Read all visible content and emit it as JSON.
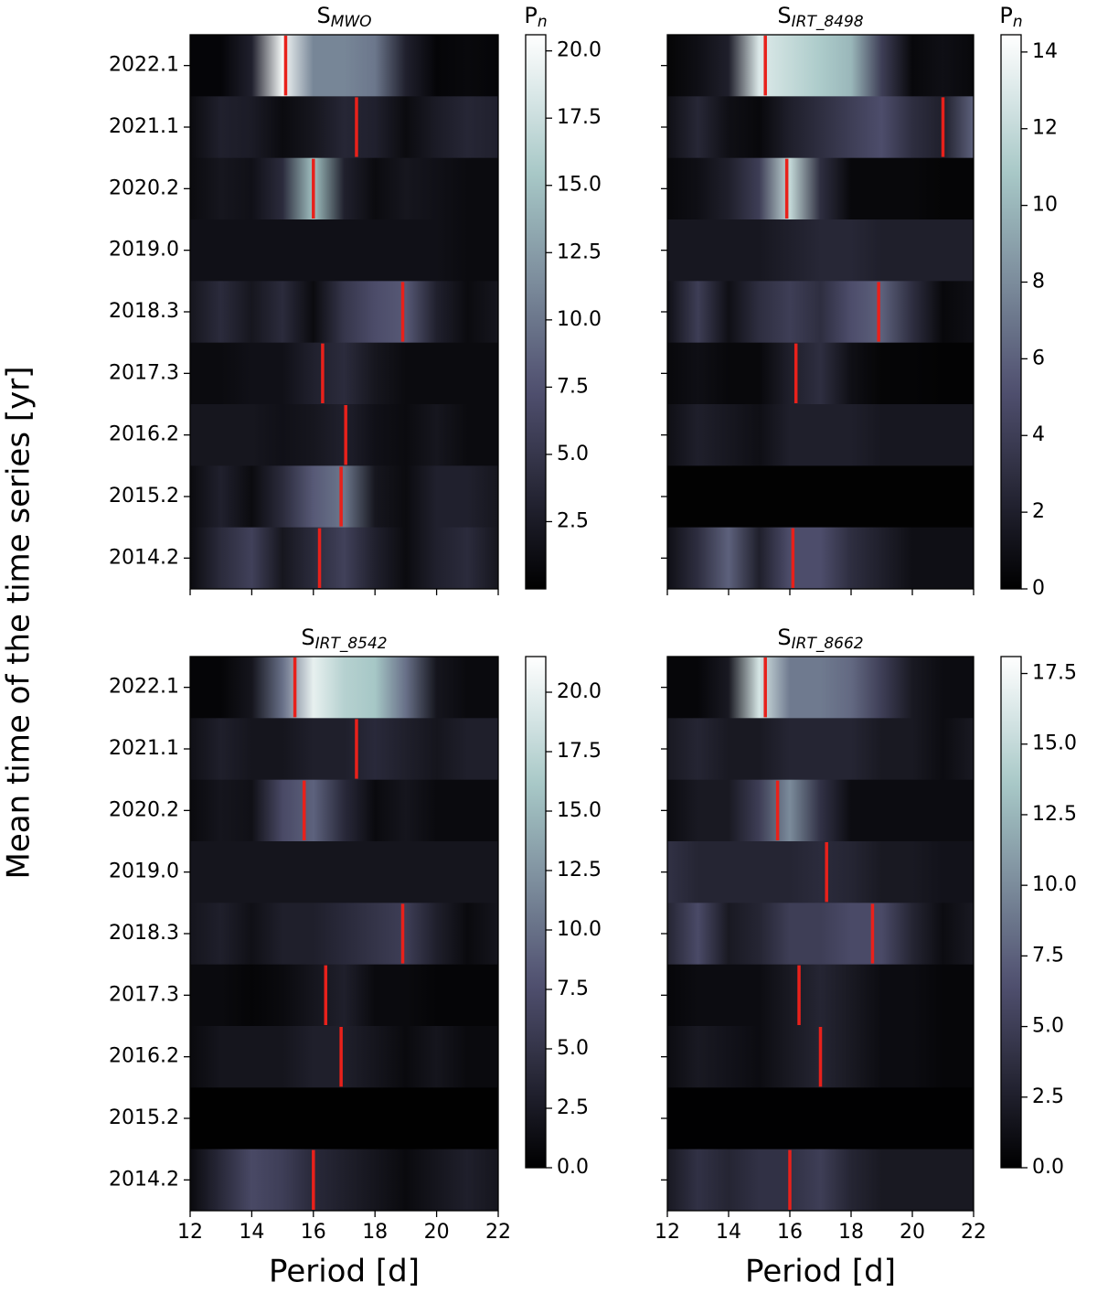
{
  "chart_data": [
    {
      "type": "heatmap",
      "title": "S",
      "title_sub": "MWO",
      "colorbar_label": "P",
      "colorbar_label_sub": "n",
      "ylabel": "Mean time of the time series [yr]",
      "colormap": "bone",
      "peak_color": "#e8211b",
      "xtick_labels": false,
      "categories": [
        "2022.1",
        "2021.1",
        "2020.2",
        "2019.0",
        "2018.3",
        "2017.3",
        "2016.2",
        "2015.2",
        "2014.2"
      ],
      "x": [
        12,
        13,
        14,
        15,
        16,
        17,
        18,
        19,
        20,
        21,
        22
      ],
      "xlim": [
        12,
        22
      ],
      "xticks": [
        12,
        14,
        16,
        18,
        20,
        22
      ],
      "zlim": [
        0,
        20.6
      ],
      "zticks": [
        2.5,
        {
          "value": 5,
          "label": "5.0"
        },
        7.5,
        {
          "value": 10,
          "label": "10.0"
        },
        12.5,
        {
          "value": 15,
          "label": "15.0"
        },
        17.5,
        {
          "value": 20,
          "label": "20.0"
        }
      ],
      "series": [
        {
          "values": [
            0.5,
            0.5,
            3,
            20,
            11,
            11,
            10,
            3,
            0.5,
            0.8,
            0.5
          ],
          "peak": 15.1
        },
        {
          "values": [
            1,
            3,
            2.5,
            1,
            2,
            3.5,
            3,
            1,
            2.5,
            3.5,
            3
          ],
          "peak": 17.4
        },
        {
          "values": [
            1,
            2,
            1.5,
            4,
            15,
            3,
            1,
            2,
            1.5,
            1,
            1
          ],
          "peak": 16.0
        },
        {
          "values": [
            1.5,
            1.5,
            1.5,
            1.5,
            1.5,
            1.5,
            1.5,
            1.5,
            1.5,
            1,
            1
          ],
          "peak": null
        },
        {
          "values": [
            2,
            4,
            2,
            4,
            1,
            5,
            7,
            8,
            3,
            1,
            2
          ],
          "peak": 18.9
        },
        {
          "values": [
            1,
            1,
            1.5,
            1.5,
            3,
            4,
            2,
            1,
            1,
            1,
            1
          ],
          "peak": 16.3
        },
        {
          "values": [
            2,
            2,
            2,
            1.5,
            2,
            3,
            1.5,
            1,
            2,
            1,
            1
          ],
          "peak": 17.05
        },
        {
          "values": [
            1,
            3,
            1,
            4,
            8,
            10,
            2,
            1,
            3,
            3,
            2
          ],
          "peak": 16.9
        },
        {
          "values": [
            1,
            4,
            6,
            2,
            4,
            6,
            3,
            1,
            3,
            4,
            2
          ],
          "peak": 16.2
        }
      ]
    },
    {
      "type": "heatmap",
      "title": "S",
      "title_sub": "IRT_8498",
      "colorbar_label": "P",
      "colorbar_label_sub": "n",
      "colormap": "bone",
      "peak_color": "#e8211b",
      "xtick_labels": false,
      "x": [
        12,
        13,
        14,
        15,
        16,
        17,
        18,
        19,
        20,
        21,
        22
      ],
      "xlim": [
        12,
        22
      ],
      "xticks": [
        12,
        14,
        16,
        18,
        20,
        22
      ],
      "zlim": [
        0,
        14.45
      ],
      "zticks": [
        0,
        2,
        4,
        6,
        8,
        10,
        12,
        14
      ],
      "series": [
        {
          "values": [
            0.3,
            1,
            2,
            13,
            12,
            11,
            10,
            4,
            0.5,
            1,
            0.5
          ],
          "peak": 15.2
        },
        {
          "values": [
            1,
            2.5,
            1,
            0.5,
            2,
            3,
            4,
            5,
            3,
            2,
            6
          ],
          "peak": 21.0
        },
        {
          "values": [
            0.5,
            1,
            2,
            4,
            12,
            3,
            0.5,
            0.5,
            0.5,
            0.3,
            0.3
          ],
          "peak": 15.9
        },
        {
          "values": [
            1.5,
            1.5,
            1.5,
            1.5,
            2,
            2.5,
            2.5,
            2,
            2,
            2,
            2
          ],
          "peak": null
        },
        {
          "values": [
            1,
            4,
            1,
            3,
            4,
            3,
            5,
            6,
            3,
            0.5,
            1
          ],
          "peak": 18.9
        },
        {
          "values": [
            0.5,
            1,
            0.5,
            0.5,
            2,
            3,
            1,
            0.3,
            0.3,
            0.2,
            0.2
          ],
          "peak": 16.2
        },
        {
          "values": [
            1,
            2,
            1.5,
            1,
            2,
            2,
            2,
            1.5,
            1.5,
            1.5,
            1.5
          ],
          "peak": null
        },
        {
          "values": [
            0.1,
            0.1,
            0.1,
            0.1,
            0.1,
            0.1,
            0.1,
            0.1,
            0.1,
            0.1,
            0.1
          ],
          "peak": null
        },
        {
          "values": [
            1,
            3,
            6,
            2,
            5,
            5,
            3,
            2,
            1,
            1,
            1
          ],
          "peak": 16.1
        }
      ]
    },
    {
      "type": "heatmap",
      "title": "S",
      "title_sub": "IRT_8542",
      "xlabel": "Period [d]",
      "colormap": "bone",
      "peak_color": "#e8211b",
      "categories": [
        "2022.1",
        "2021.1",
        "2020.2",
        "2019.0",
        "2018.3",
        "2017.3",
        "2016.2",
        "2015.2",
        "2014.2"
      ],
      "x": [
        12,
        13,
        14,
        15,
        16,
        17,
        18,
        19,
        20,
        21,
        22
      ],
      "xlim": [
        12,
        22
      ],
      "xticks": [
        12,
        14,
        16,
        18,
        20,
        22
      ],
      "zlim": [
        0,
        21.5
      ],
      "zticks": [
        {
          "value": 0,
          "label": "0.0"
        },
        2.5,
        {
          "value": 5,
          "label": "5.0"
        },
        7.5,
        {
          "value": 10,
          "label": "10.0"
        },
        12.5,
        {
          "value": 15,
          "label": "15.0"
        },
        17.5,
        {
          "value": 20,
          "label": "20.0"
        }
      ],
      "series": [
        {
          "values": [
            0.5,
            0.5,
            2,
            10,
            20,
            17,
            16,
            10,
            2,
            1,
            1
          ],
          "peak": 15.4
        },
        {
          "values": [
            1.5,
            3,
            2,
            2,
            3,
            3,
            4,
            3,
            2,
            3,
            3
          ],
          "peak": 17.4
        },
        {
          "values": [
            1,
            2,
            1.5,
            7,
            9,
            4,
            1,
            2,
            1,
            1,
            1
          ],
          "peak": 15.7
        },
        {
          "values": [
            2,
            2,
            2,
            2,
            2,
            2,
            2,
            2,
            2,
            2,
            2
          ],
          "peak": null
        },
        {
          "values": [
            2,
            3,
            1.5,
            3,
            3,
            4,
            5,
            6,
            3,
            1,
            2
          ],
          "peak": 18.9
        },
        {
          "values": [
            1,
            1,
            0.5,
            1,
            2,
            3,
            1,
            1,
            0.5,
            0.5,
            0.5
          ],
          "peak": 16.4
        },
        {
          "values": [
            1,
            2,
            2,
            2,
            3,
            3,
            2,
            1,
            2,
            1,
            1
          ],
          "peak": 16.9
        },
        {
          "values": [
            0.1,
            0.1,
            0.1,
            0.1,
            0.1,
            0.1,
            0.1,
            0.1,
            0.1,
            0.1,
            0.1
          ],
          "peak": null
        },
        {
          "values": [
            1,
            4,
            7,
            6,
            4,
            3,
            2,
            1,
            2,
            3,
            2
          ],
          "peak": 16.0
        }
      ]
    },
    {
      "type": "heatmap",
      "title": "S",
      "title_sub": "IRT_8662",
      "xlabel": "Period [d]",
      "colormap": "bone",
      "peak_color": "#e8211b",
      "x": [
        12,
        13,
        14,
        15,
        16,
        17,
        18,
        19,
        20,
        21,
        22
      ],
      "xlim": [
        12,
        22
      ],
      "xticks": [
        12,
        14,
        16,
        18,
        20,
        22
      ],
      "zlim": [
        0,
        18.1
      ],
      "zticks": [
        {
          "value": 0,
          "label": "0.0"
        },
        2.5,
        {
          "value": 5,
          "label": "5.0"
        },
        7.5,
        {
          "value": 10,
          "label": "10.0"
        },
        12.5,
        {
          "value": 15,
          "label": "15.0"
        },
        17.5
      ],
      "series": [
        {
          "values": [
            0.5,
            0.5,
            2,
            16,
            9,
            9,
            8,
            5,
            2,
            1,
            1
          ],
          "peak": 15.2
        },
        {
          "values": [
            2,
            3,
            2,
            2,
            3,
            3,
            3,
            2,
            2,
            1,
            2
          ],
          "peak": null
        },
        {
          "values": [
            1,
            2,
            2,
            5,
            10,
            4,
            1,
            1,
            1,
            1,
            1
          ],
          "peak": 15.6
        },
        {
          "values": [
            4,
            3,
            3,
            3,
            3,
            3.5,
            3,
            2,
            2,
            1.5,
            1.5
          ],
          "peak": 17.2
        },
        {
          "values": [
            3,
            6,
            2,
            3,
            5,
            5,
            6,
            6,
            3,
            1,
            2
          ],
          "peak": 18.7
        },
        {
          "values": [
            0.5,
            1,
            1,
            1,
            2,
            3,
            2,
            1,
            1,
            0.5,
            0.5
          ],
          "peak": 16.3
        },
        {
          "values": [
            1,
            2,
            1.5,
            1,
            2,
            3,
            2,
            1,
            1,
            0.5,
            0.5
          ],
          "peak": 17.0
        },
        {
          "values": [
            0.1,
            0.1,
            0.1,
            0.1,
            0.1,
            0.1,
            0.1,
            0.1,
            0.1,
            0.1,
            0.1
          ],
          "peak": null
        },
        {
          "values": [
            2,
            4,
            3,
            4,
            4,
            5,
            3,
            2,
            2,
            2,
            2
          ],
          "peak": 16.0
        }
      ]
    }
  ]
}
